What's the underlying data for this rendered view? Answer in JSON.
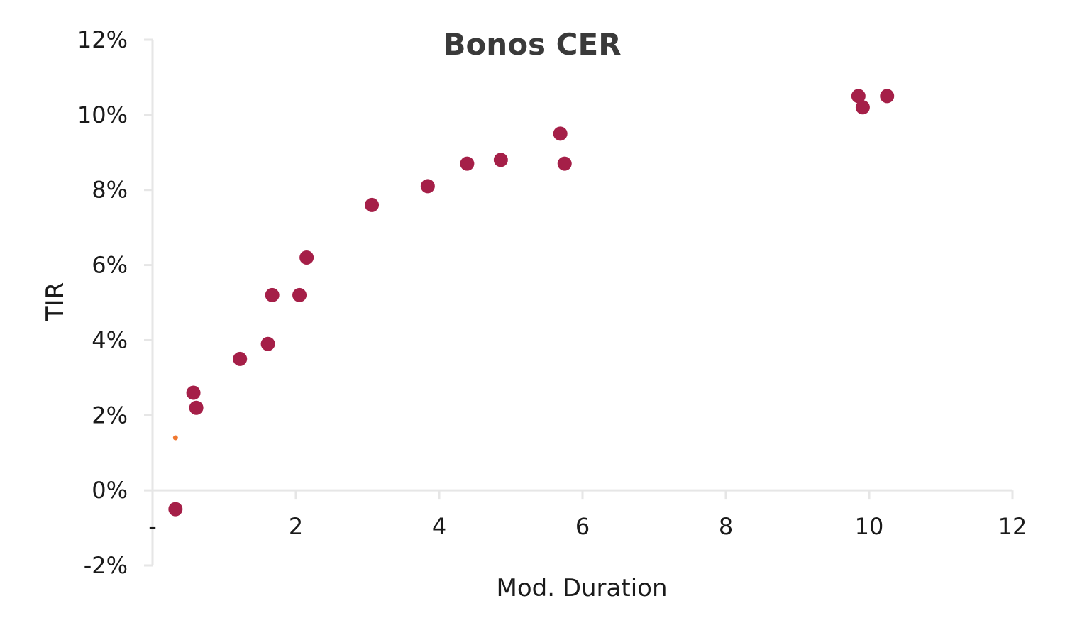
{
  "chart_data": {
    "type": "scatter",
    "title": "Bonos CER",
    "xlabel": "Mod. Duration",
    "ylabel": "TIR",
    "xlim": [
      0,
      12
    ],
    "ylim": [
      -0.02,
      0.12
    ],
    "x_ticks": [
      {
        "value": 0,
        "label": "-"
      },
      {
        "value": 2,
        "label": "2"
      },
      {
        "value": 4,
        "label": "4"
      },
      {
        "value": 6,
        "label": "6"
      },
      {
        "value": 8,
        "label": "8"
      },
      {
        "value": 10,
        "label": "10"
      },
      {
        "value": 12,
        "label": "12"
      }
    ],
    "y_ticks": [
      {
        "value": -0.02,
        "label": "-2%"
      },
      {
        "value": 0,
        "label": "0%"
      },
      {
        "value": 0.02,
        "label": "2%"
      },
      {
        "value": 0.04,
        "label": "4%"
      },
      {
        "value": 0.06,
        "label": "6%"
      },
      {
        "value": 0.08,
        "label": "8%"
      },
      {
        "value": 0.1,
        "label": "10%"
      },
      {
        "value": 0.12,
        "label": "12%"
      }
    ],
    "grid": false,
    "legend": "none",
    "series": [
      {
        "color": "#A51F48",
        "marker": "large-circle",
        "points": [
          {
            "x": 0.32,
            "y": -0.005
          },
          {
            "x": 0.57,
            "y": 0.026
          },
          {
            "x": 0.61,
            "y": 0.022
          },
          {
            "x": 1.22,
            "y": 0.035
          },
          {
            "x": 1.61,
            "y": 0.039
          },
          {
            "x": 1.67,
            "y": 0.052
          },
          {
            "x": 2.05,
            "y": 0.052
          },
          {
            "x": 2.15,
            "y": 0.062
          },
          {
            "x": 3.06,
            "y": 0.076
          },
          {
            "x": 3.84,
            "y": 0.081
          },
          {
            "x": 4.39,
            "y": 0.087
          },
          {
            "x": 4.86,
            "y": 0.088
          },
          {
            "x": 5.69,
            "y": 0.095
          },
          {
            "x": 5.75,
            "y": 0.087
          },
          {
            "x": 9.85,
            "y": 0.105
          },
          {
            "x": 9.91,
            "y": 0.102
          },
          {
            "x": 10.25,
            "y": 0.105
          }
        ]
      },
      {
        "color": "#F07830",
        "marker": "small-dot",
        "points": [
          {
            "x": 0.32,
            "y": 0.014
          }
        ]
      }
    ]
  }
}
